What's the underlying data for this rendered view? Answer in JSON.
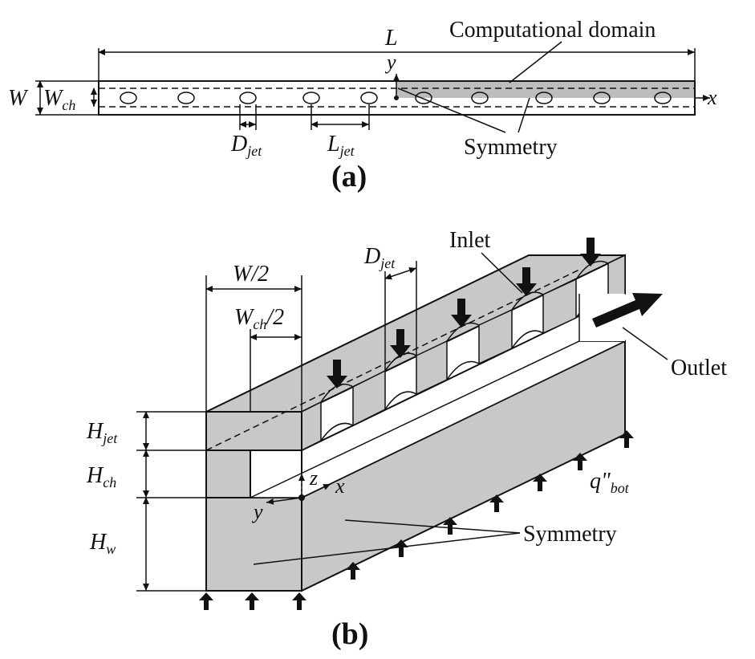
{
  "panel_a": {
    "caption": "(a)",
    "label_L": "L",
    "label_W": "W",
    "label_Wch_main": "W",
    "label_Wch_sub": "ch",
    "label_y": "y",
    "label_x": "x",
    "label_Djet_main": "D",
    "label_Djet_sub": "jet",
    "label_Ljet_main": "L",
    "label_Ljet_sub": "jet",
    "label_comp_domain": "Computational domain",
    "label_symmetry": "Symmetry"
  },
  "panel_b": {
    "caption": "(b)",
    "label_W2": "W/2",
    "label_Wch2_main": "W",
    "label_Wch2_sub": "ch",
    "label_Wch2_tail": "/2",
    "label_Djet_main": "D",
    "label_Djet_sub": "jet",
    "label_inlet": "Inlet",
    "label_outlet": "Outlet",
    "label_Hjet_main": "H",
    "label_Hjet_sub": "jet",
    "label_Hch_main": "H",
    "label_Hch_sub": "ch",
    "label_Hw_main": "H",
    "label_Hw_sub": "w",
    "label_z": "z",
    "label_x": "x",
    "label_y": "y",
    "label_q_main": "q\"",
    "label_q_sub": "bot",
    "label_symmetry": "Symmetry"
  },
  "colors": {
    "shade": "#c8c8c8",
    "line": "#111111"
  }
}
